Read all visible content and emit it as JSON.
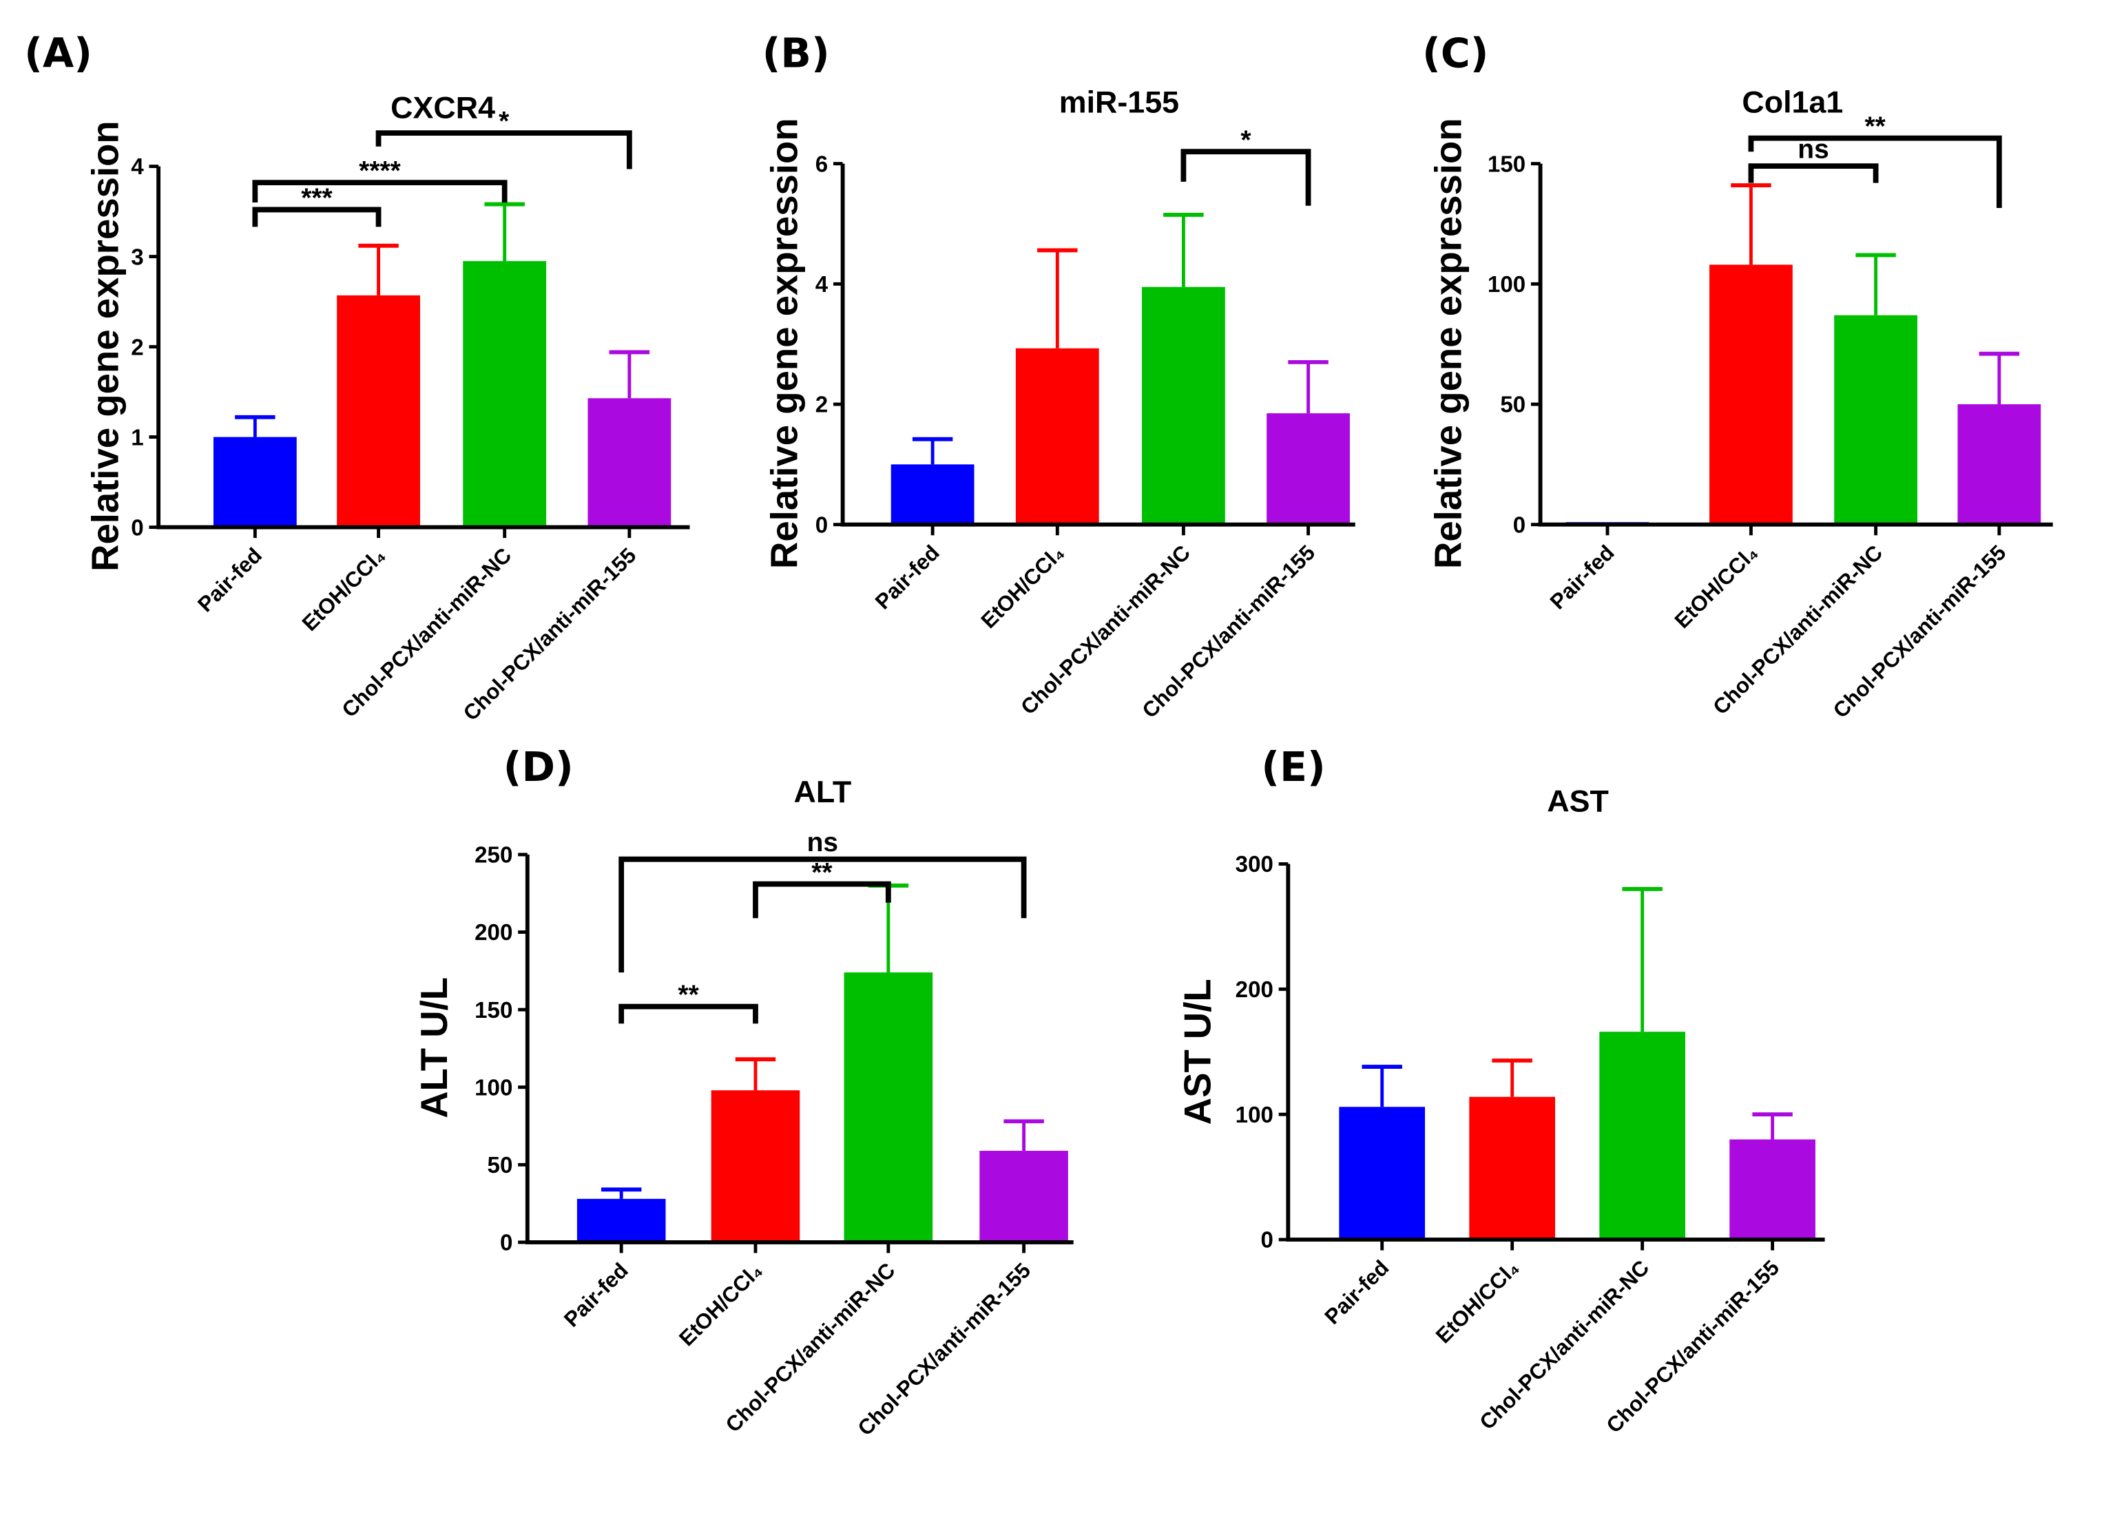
{
  "chart_data": [
    {
      "panel": "(A)",
      "type": "bar",
      "title": "CXCR4",
      "ylabel": "Relative gene expression",
      "xlabel": "",
      "categories": [
        "Pair-fed",
        "EtOH/CCl₄",
        "Chol-PCX/anti-miR-NC",
        "Chol-PCX/anti-miR-155"
      ],
      "values": [
        1.0,
        2.57,
        2.95,
        1.43
      ],
      "errors": [
        0.22,
        0.55,
        0.63,
        0.51
      ],
      "colors": [
        "#0000FF",
        "#FF0000",
        "#00BF00",
        "#AA0AE0"
      ],
      "ylim": [
        0,
        4
      ],
      "yticks": [
        "0",
        "1",
        "2",
        "3",
        "4"
      ],
      "ytick_values": [
        0,
        1,
        2,
        3,
        4
      ],
      "significance": [
        {
          "from": 0,
          "to": 1,
          "y": 3.52,
          "left_end": 3.33,
          "right_end": 3.33,
          "label": "***"
        },
        {
          "from": 0,
          "to": 2,
          "y": 3.82,
          "left_end": 3.6,
          "right_end": 3.6,
          "label": "****"
        },
        {
          "from": 1,
          "to": 3,
          "y": 4.37,
          "left_end": 4.22,
          "right_end": 3.97,
          "label": "*"
        }
      ]
    },
    {
      "panel": "(B)",
      "type": "bar",
      "title": "miR-155",
      "ylabel": "Relative gene expression",
      "xlabel": "",
      "categories": [
        "Pair-fed",
        "EtOH/CCl₄",
        "Chol-PCX/anti-miR-NC",
        "Chol-PCX/anti-miR-155"
      ],
      "values": [
        1.0,
        2.93,
        3.95,
        1.85
      ],
      "errors": [
        0.42,
        1.63,
        1.2,
        0.85
      ],
      "colors": [
        "#0000FF",
        "#FF0000",
        "#00BF00",
        "#AA0AE0"
      ],
      "ylim": [
        0,
        6
      ],
      "yticks": [
        "0",
        "2",
        "4",
        "6"
      ],
      "ytick_values": [
        0,
        2,
        4,
        6
      ],
      "significance": [
        {
          "from": 2,
          "to": 3,
          "y": 6.2,
          "left_end": 5.7,
          "right_end": 5.3,
          "label": "*"
        }
      ]
    },
    {
      "panel": "(C)",
      "type": "bar",
      "title": "Col1a1",
      "ylabel": "Relative gene expression",
      "xlabel": "",
      "categories": [
        "Pair-fed",
        "EtOH/CCl₄",
        "Chol-PCX/anti-miR-NC",
        "Chol-PCX/anti-miR-155"
      ],
      "values": [
        1.0,
        108,
        87,
        50
      ],
      "errors": [
        0,
        33,
        25,
        21
      ],
      "colors": [
        "#0000FF",
        "#FF0000",
        "#00BF00",
        "#AA0AE0"
      ],
      "ylim": [
        0,
        150
      ],
      "yticks": [
        "0",
        "50",
        "100",
        "150"
      ],
      "ytick_values": [
        0,
        50,
        100,
        150
      ],
      "significance": [
        {
          "from": 1,
          "to": 2,
          "y": 149,
          "left_end": 142,
          "right_end": 142,
          "label": "ns"
        },
        {
          "from": 1,
          "to": 3,
          "y": 160.6,
          "left_end": 155,
          "right_end": 131.6,
          "label": "**"
        }
      ]
    },
    {
      "panel": "(D)",
      "type": "bar",
      "title": "ALT",
      "ylabel": "ALT U/L",
      "xlabel": "",
      "categories": [
        "Pair-fed",
        "EtOH/CCl₄",
        "Chol-PCX/anti-miR-NC",
        "Chol-PCX/anti-miR-155"
      ],
      "values": [
        28,
        98,
        174,
        59
      ],
      "errors": [
        6,
        20,
        56,
        19
      ],
      "colors": [
        "#0000FF",
        "#FF0000",
        "#00BF00",
        "#AA0AE0"
      ],
      "ylim": [
        0,
        250
      ],
      "yticks": [
        "0",
        "50",
        "100",
        "150",
        "200",
        "250"
      ],
      "ytick_values": [
        0,
        50,
        100,
        150,
        200,
        250
      ],
      "significance": [
        {
          "from": 0,
          "to": 1,
          "y": 152,
          "left_end": 141,
          "right_end": 141,
          "label": "**"
        },
        {
          "from": 1,
          "to": 2,
          "y": 231,
          "left_end": 209,
          "right_end": 219,
          "label": "**"
        },
        {
          "from": 0,
          "to": 3,
          "y": 247,
          "left_end": 174,
          "right_end": 209,
          "label": "ns"
        }
      ]
    },
    {
      "panel": "(E)",
      "type": "bar",
      "title": "AST",
      "ylabel": "AST U/L",
      "xlabel": "",
      "categories": [
        "Pair-fed",
        "EtOH/CCl₄",
        "Chol-PCX/anti-miR-NC",
        "Chol-PCX/anti-miR-155"
      ],
      "values": [
        106,
        114,
        166,
        80
      ],
      "errors": [
        32,
        29,
        114,
        20
      ],
      "colors": [
        "#0000FF",
        "#FF0000",
        "#00BF00",
        "#AA0AE0"
      ],
      "ylim": [
        0,
        300
      ],
      "yticks": [
        "0",
        "100",
        "200",
        "300"
      ],
      "ytick_values": [
        0,
        100,
        200,
        300
      ],
      "significance": []
    }
  ]
}
